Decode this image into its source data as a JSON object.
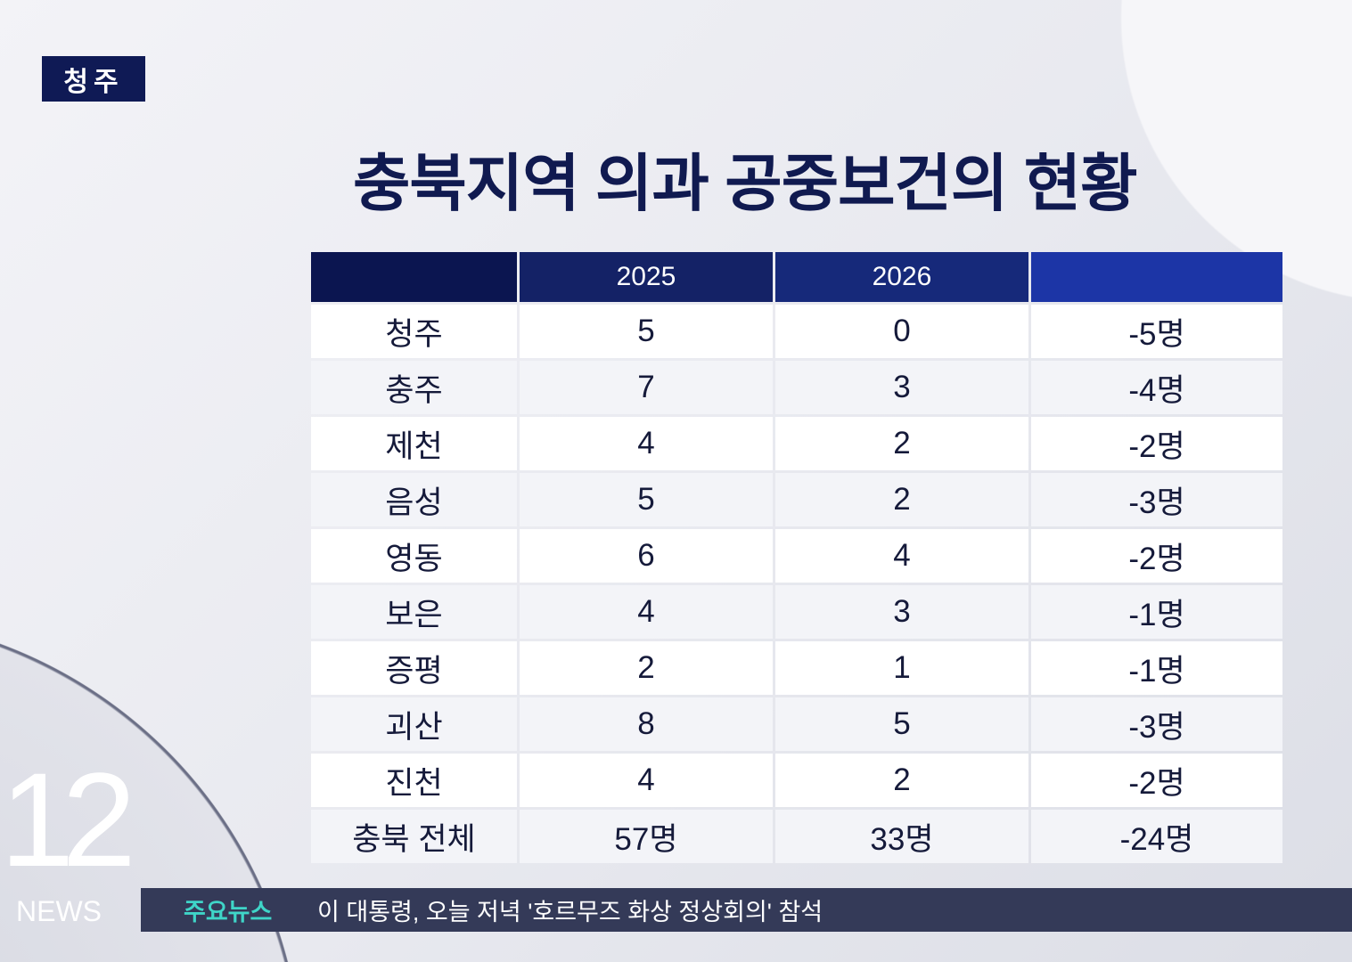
{
  "location_badge": "청주",
  "title": "충북지역 의과 공중보건의 현황",
  "colors": {
    "navy": "#0f1a55",
    "header_blue": "#1c35a6",
    "ticker_bg": "#343a58",
    "ticker_label": "#3fd5c8"
  },
  "table": {
    "headers": [
      "",
      "2025",
      "2026",
      ""
    ],
    "rows": [
      [
        "청주",
        "5",
        "0",
        "-5명"
      ],
      [
        "충주",
        "7",
        "3",
        "-4명"
      ],
      [
        "제천",
        "4",
        "2",
        "-2명"
      ],
      [
        "음성",
        "5",
        "2",
        "-3명"
      ],
      [
        "영동",
        "6",
        "4",
        "-2명"
      ],
      [
        "보은",
        "4",
        "3",
        "-1명"
      ],
      [
        "증평",
        "2",
        "1",
        "-1명"
      ],
      [
        "괴산",
        "8",
        "5",
        "-3명"
      ],
      [
        "진천",
        "4",
        "2",
        "-2명"
      ],
      [
        "충북 전체",
        "57명",
        "33명",
        "-24명"
      ]
    ]
  },
  "channel_logo": {
    "number": "12",
    "text": "NEWS"
  },
  "ticker": {
    "label": "주요뉴스",
    "headline": "이 대통령, 오늘 저녁 '호르무즈 화상 정상회의' 참석"
  }
}
